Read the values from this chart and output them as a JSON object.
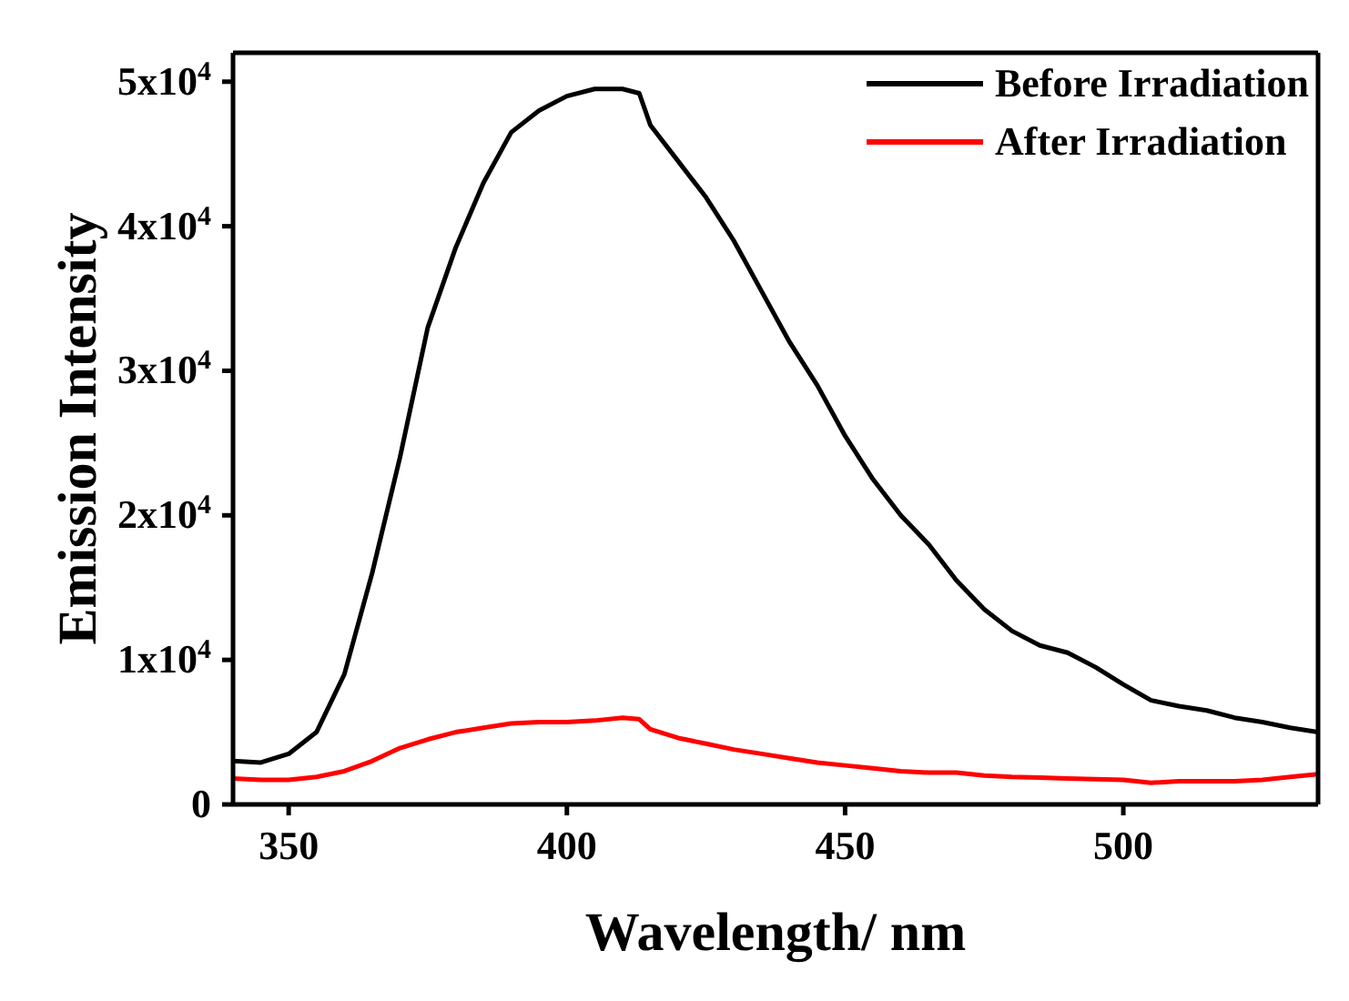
{
  "chart_data": {
    "type": "line",
    "xlabel": "Wavelength/ nm",
    "ylabel": "Emission  Intensity",
    "xlim": [
      340,
      535
    ],
    "xticks": [
      350,
      400,
      450,
      500
    ],
    "ylim": [
      0,
      52000
    ],
    "yticks": [
      0,
      {
        "value": 10000,
        "label": "1x10$^{4}$"
      },
      {
        "value": 20000,
        "label": "2x10$^{4}$"
      },
      {
        "value": 30000,
        "label": "3x10$^{4}$"
      },
      {
        "value": 40000,
        "label": "4x10$^{4}$"
      },
      {
        "value": 50000,
        "label": "5x10$^{4}$"
      }
    ],
    "grid": false,
    "legend": "top right",
    "marker": "none",
    "line_style": "solid",
    "x": [
      340,
      345,
      350,
      355,
      360,
      365,
      370,
      375,
      380,
      385,
      390,
      395,
      400,
      405,
      410,
      413,
      415,
      420,
      425,
      430,
      435,
      440,
      445,
      450,
      455,
      460,
      465,
      470,
      475,
      480,
      485,
      490,
      495,
      500,
      505,
      510,
      515,
      520,
      525,
      530,
      535
    ],
    "series": [
      {
        "name": "Before Irradiation",
        "color": "#000000",
        "values": [
          3000,
          2900,
          3500,
          5000,
          9000,
          16000,
          24000,
          33000,
          38500,
          43000,
          46500,
          48000,
          49000,
          49500,
          49500,
          49200,
          47000,
          44500,
          42000,
          39000,
          35500,
          32000,
          29000,
          25500,
          22500,
          20000,
          18000,
          15500,
          13500,
          12000,
          11000,
          10500,
          9500,
          8300,
          7200,
          6800,
          6500,
          6000,
          5700,
          5300,
          5000
        ]
      },
      {
        "name": "After Irradiation",
        "color": "#ff0000",
        "values": [
          1800,
          1700,
          1700,
          1900,
          2300,
          3000,
          3900,
          4500,
          5000,
          5300,
          5600,
          5700,
          5700,
          5800,
          6000,
          5900,
          5200,
          4600,
          4200,
          3800,
          3500,
          3200,
          2900,
          2700,
          2500,
          2300,
          2200,
          2200,
          2000,
          1900,
          1850,
          1800,
          1750,
          1700,
          1500,
          1600,
          1600,
          1600,
          1700,
          1900,
          2100
        ]
      }
    ]
  }
}
